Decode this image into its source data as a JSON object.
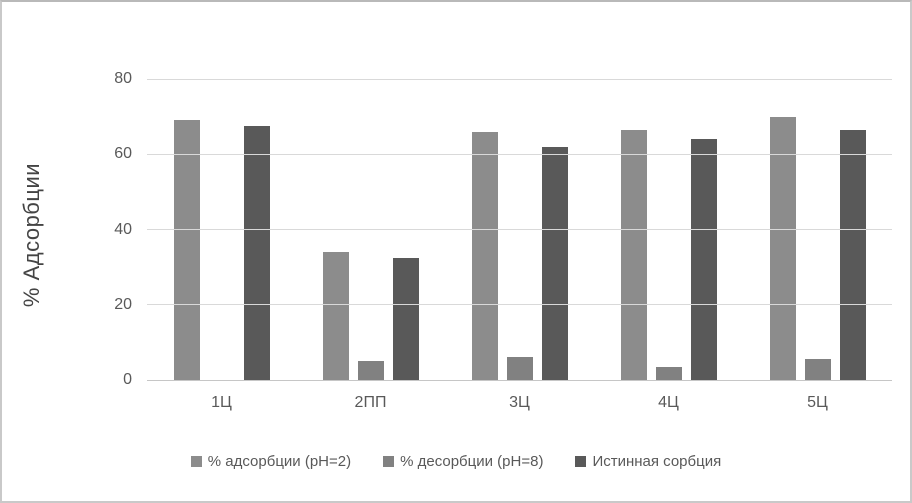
{
  "chart_data": {
    "type": "bar",
    "title": "",
    "xlabel": "",
    "ylabel": "% Адсорбции",
    "ylim": [
      0,
      80
    ],
    "yticks": [
      0,
      20,
      40,
      60,
      80
    ],
    "grid": true,
    "legend_position": "bottom",
    "categories": [
      "1Ц",
      "2ПП",
      "3Ц",
      "4Ц",
      "5Ц"
    ],
    "series": [
      {
        "name": "% адсорбции (pH=2)",
        "color": "#8c8c8c",
        "values": [
          69,
          34,
          66,
          66.5,
          70
        ]
      },
      {
        "name": "% десорбции (pH=8)",
        "color": "#818181",
        "values": [
          0,
          5,
          6,
          3.5,
          5.5
        ]
      },
      {
        "name": "Истинная сорбция",
        "color": "#595959",
        "values": [
          67.5,
          32.5,
          62,
          64,
          66.5
        ]
      }
    ]
  },
  "colors": {
    "gridline": "#d9d9d9",
    "axis_line": "#c6c6c6",
    "tick_text": "#595959",
    "axis_title_text": "#444444",
    "frame_border": "#c9c9c9",
    "background": "#ffffff"
  }
}
